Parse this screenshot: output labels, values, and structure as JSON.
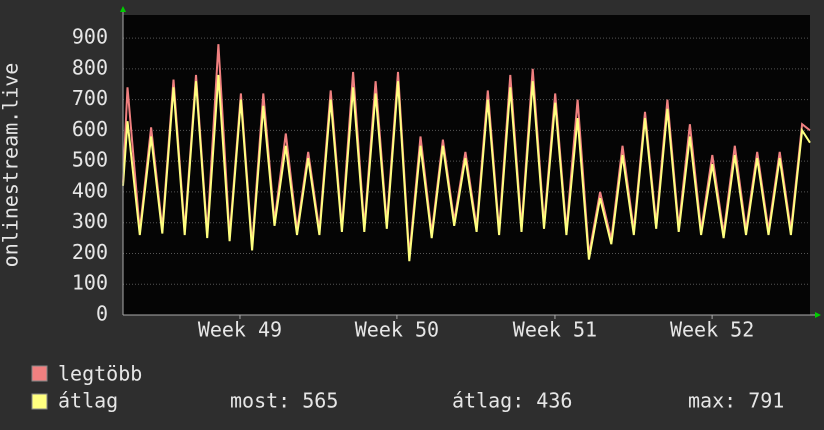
{
  "chart_data": {
    "type": "line",
    "ylabel": "onlinestream.live",
    "x": [
      0,
      0.2,
      0.75,
      1.25,
      1.75,
      2.25,
      2.75,
      3.25,
      3.75,
      4.25,
      4.75,
      5.25,
      5.75,
      6.25,
      6.75,
      7.25,
      7.75,
      8.25,
      8.75,
      9.25,
      9.75,
      10.25,
      10.75,
      11.25,
      11.75,
      12.25,
      12.75,
      13.25,
      13.75,
      14.25,
      14.75,
      15.25,
      15.75,
      16.25,
      16.75,
      17.25,
      17.75,
      18.25,
      18.75,
      19.25,
      19.75,
      20.25,
      20.75,
      21.25,
      21.75,
      22.25,
      22.75,
      23.25,
      23.75,
      24.25,
      24.75,
      25.25,
      25.75,
      26.25,
      26.75,
      27.25,
      27.75,
      28.25,
      28.75,
      29.25,
      29.75,
      30.25,
      30.6
    ],
    "series": [
      {
        "name": "legtöbb",
        "color": "#f08080",
        "values": [
          430,
          740,
          275,
          610,
          280,
          765,
          275,
          780,
          265,
          880,
          255,
          720,
          225,
          720,
          305,
          590,
          275,
          530,
          275,
          730,
          285,
          790,
          285,
          760,
          295,
          790,
          190,
          580,
          265,
          570,
          305,
          530,
          285,
          730,
          275,
          780,
          285,
          800,
          295,
          720,
          275,
          700,
          195,
          400,
          245,
          550,
          275,
          660,
          295,
          700,
          285,
          620,
          275,
          520,
          265,
          550,
          275,
          530,
          275,
          530,
          275,
          620,
          600
        ]
      },
      {
        "name": "átlag",
        "color": "#ffff80",
        "values": [
          420,
          630,
          260,
          580,
          265,
          740,
          260,
          760,
          250,
          780,
          240,
          700,
          210,
          680,
          290,
          550,
          260,
          510,
          260,
          700,
          270,
          740,
          270,
          720,
          280,
          760,
          175,
          550,
          250,
          550,
          290,
          510,
          270,
          700,
          260,
          740,
          270,
          760,
          280,
          690,
          260,
          640,
          180,
          380,
          230,
          520,
          260,
          640,
          280,
          670,
          270,
          580,
          260,
          490,
          250,
          520,
          260,
          510,
          260,
          510,
          260,
          600,
          560
        ]
      }
    ],
    "xlim": [
      0,
      30.6
    ],
    "xticks": [
      {
        "value": 5.21,
        "label": "Week 49"
      },
      {
        "value": 12.2,
        "label": "Week 50"
      },
      {
        "value": 19.24,
        "label": "Week 51"
      },
      {
        "value": 26.24,
        "label": "Week 52"
      }
    ],
    "ylim": [
      0,
      975
    ],
    "yticks": [
      0,
      100,
      200,
      300,
      400,
      500,
      600,
      700,
      800,
      900
    ],
    "grid": true,
    "stats": [
      "most: 565",
      "átlag: 436",
      "max: 791"
    ]
  }
}
